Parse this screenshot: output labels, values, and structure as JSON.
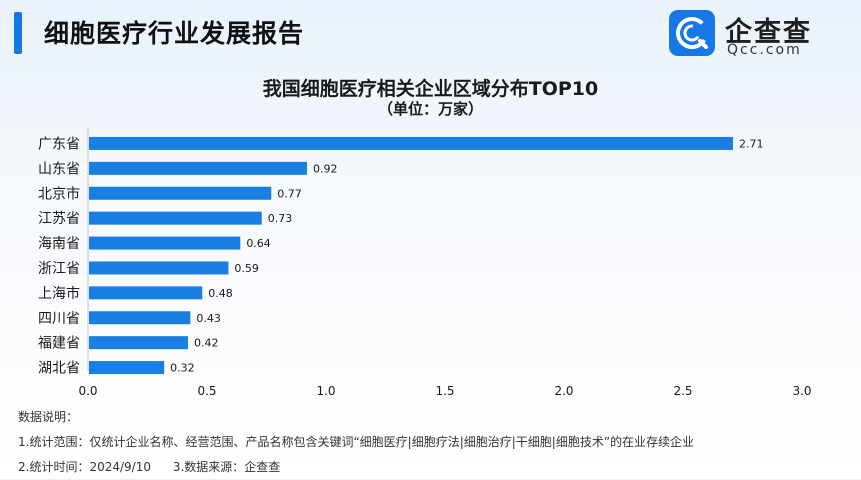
{
  "header": {
    "title": "细胞医疗行业发展报告",
    "logo_name": "企查查",
    "logo_domain": "Qcc.com"
  },
  "chart_data": {
    "type": "bar",
    "orientation": "horizontal",
    "title": "我国细胞医疗相关企业区域分布TOP10",
    "subtitle": "（单位：万家）",
    "categories": [
      "广东省",
      "山东省",
      "北京市",
      "江苏省",
      "海南省",
      "浙江省",
      "上海市",
      "四川省",
      "福建省",
      "湖北省"
    ],
    "values": [
      2.71,
      0.92,
      0.77,
      0.73,
      0.64,
      0.59,
      0.48,
      0.43,
      0.42,
      0.32
    ],
    "value_labels": [
      "2.71",
      "0.92",
      "0.77",
      "0.73",
      "0.64",
      "0.59",
      "0.48",
      "0.43",
      "0.42",
      "0.32"
    ],
    "xlim": [
      0,
      3.0
    ],
    "xticks": [
      "0.0",
      "0.5",
      "1.0",
      "1.5",
      "2.0",
      "2.5",
      "3.0"
    ],
    "xtick_values": [
      0,
      0.5,
      1.0,
      1.5,
      2.0,
      2.5,
      3.0
    ],
    "grid": false,
    "bar_color": "#1a7fe3"
  },
  "notes": {
    "heading": "数据说明：",
    "line1": "1.统计范围：仅统计企业名称、经营范围、产品名称包含关键词“细胞医疗|细胞疗法|细胞治疗|干细胞|细胞技术”的在业存续企业",
    "line2a": "2.统计时间：2024/9/10",
    "line2b": "3.数据来源：企查查"
  },
  "colors": {
    "accent": "#1677e6"
  }
}
